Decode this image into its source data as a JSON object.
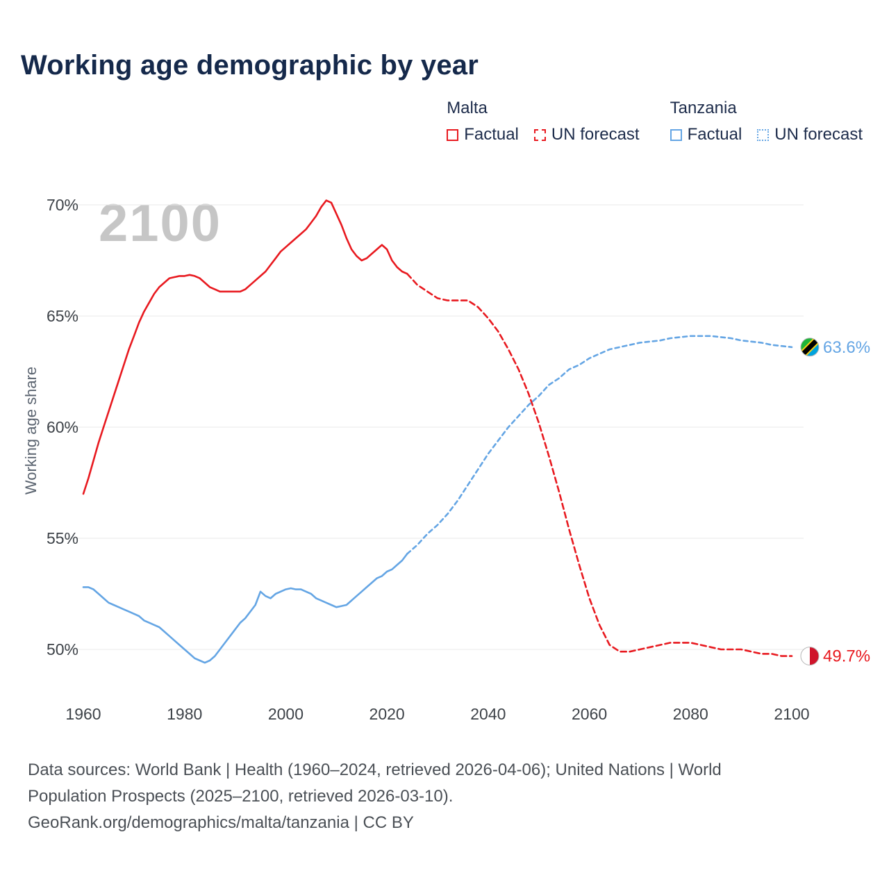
{
  "title": "Working age demographic by year",
  "watermark": "2100",
  "legend": {
    "malta_label": "Malta",
    "tanzania_label": "Tanzania",
    "factual_label": "Factual",
    "forecast_label": "UN forecast"
  },
  "colors": {
    "malta": "#e8191f",
    "tanzania": "#64a5e4",
    "grid": "#e8e8e8",
    "title_text": "#15294b",
    "tick_text": "#3d4248",
    "axis_title_text": "#5b6470",
    "watermark_text": "#c6c6c6",
    "footer_text": "#4a4f55",
    "flag_tz_green": "#1eb53a",
    "flag_tz_blue": "#00a3dd",
    "flag_tz_yellow": "#fcd116",
    "flag_tz_black": "#000000",
    "flag_mt_white": "#ffffff",
    "flag_mt_red": "#cf142b"
  },
  "end_labels": {
    "malta": "49.7%",
    "tanzania": "63.6%"
  },
  "footer": {
    "line1": "Data sources: World Bank | Health (1960–2024, retrieved 2026-04-06); United Nations | World",
    "line2": "Population Prospects (2025–2100, retrieved 2026-03-10).",
    "line3": "GeoRank.org/demographics/malta/tanzania | CC BY"
  },
  "chart_data": {
    "type": "line",
    "title": "Working age demographic by year",
    "xlabel": "",
    "ylabel": "Working age share",
    "ylim": [
      48.5,
      71
    ],
    "xlim": [
      1960,
      2100
    ],
    "yticks": [
      50,
      55,
      60,
      65,
      70
    ],
    "xticks": [
      1960,
      1980,
      2000,
      2020,
      2040,
      2060,
      2080,
      2100
    ],
    "grid": "horizontal",
    "legend_position": "top-right",
    "series": [
      {
        "name": "Malta Factual",
        "color_key": "malta",
        "style": "solid",
        "points": [
          [
            1960,
            57.0
          ],
          [
            1961,
            57.7
          ],
          [
            1962,
            58.5
          ],
          [
            1963,
            59.3
          ],
          [
            1964,
            60.0
          ],
          [
            1965,
            60.7
          ],
          [
            1966,
            61.4
          ],
          [
            1967,
            62.1
          ],
          [
            1968,
            62.8
          ],
          [
            1969,
            63.5
          ],
          [
            1970,
            64.1
          ],
          [
            1971,
            64.7
          ],
          [
            1972,
            65.2
          ],
          [
            1973,
            65.6
          ],
          [
            1974,
            66.0
          ],
          [
            1975,
            66.3
          ],
          [
            1976,
            66.5
          ],
          [
            1977,
            66.7
          ],
          [
            1978,
            66.75
          ],
          [
            1979,
            66.8
          ],
          [
            1980,
            66.8
          ],
          [
            1981,
            66.85
          ],
          [
            1982,
            66.8
          ],
          [
            1983,
            66.7
          ],
          [
            1984,
            66.5
          ],
          [
            1985,
            66.3
          ],
          [
            1986,
            66.2
          ],
          [
            1987,
            66.1
          ],
          [
            1988,
            66.1
          ],
          [
            1989,
            66.1
          ],
          [
            1990,
            66.1
          ],
          [
            1991,
            66.1
          ],
          [
            1992,
            66.2
          ],
          [
            1993,
            66.4
          ],
          [
            1994,
            66.6
          ],
          [
            1995,
            66.8
          ],
          [
            1996,
            67.0
          ],
          [
            1997,
            67.3
          ],
          [
            1998,
            67.6
          ],
          [
            1999,
            67.9
          ],
          [
            2000,
            68.1
          ],
          [
            2001,
            68.3
          ],
          [
            2002,
            68.5
          ],
          [
            2003,
            68.7
          ],
          [
            2004,
            68.9
          ],
          [
            2005,
            69.2
          ],
          [
            2006,
            69.5
          ],
          [
            2007,
            69.9
          ],
          [
            2008,
            70.2
          ],
          [
            2009,
            70.1
          ],
          [
            2010,
            69.6
          ],
          [
            2011,
            69.1
          ],
          [
            2012,
            68.5
          ],
          [
            2013,
            68.0
          ],
          [
            2014,
            67.7
          ],
          [
            2015,
            67.5
          ],
          [
            2016,
            67.6
          ],
          [
            2017,
            67.8
          ],
          [
            2018,
            68.0
          ],
          [
            2019,
            68.2
          ],
          [
            2020,
            68.0
          ],
          [
            2021,
            67.5
          ],
          [
            2022,
            67.2
          ],
          [
            2023,
            67.0
          ],
          [
            2024,
            66.9
          ]
        ]
      },
      {
        "name": "Malta UN forecast",
        "color_key": "malta",
        "style": "dashed",
        "points": [
          [
            2024,
            66.9
          ],
          [
            2026,
            66.4
          ],
          [
            2028,
            66.1
          ],
          [
            2030,
            65.8
          ],
          [
            2032,
            65.7
          ],
          [
            2034,
            65.7
          ],
          [
            2036,
            65.7
          ],
          [
            2038,
            65.4
          ],
          [
            2040,
            64.9
          ],
          [
            2042,
            64.3
          ],
          [
            2044,
            63.5
          ],
          [
            2046,
            62.6
          ],
          [
            2048,
            61.5
          ],
          [
            2050,
            60.2
          ],
          [
            2052,
            58.7
          ],
          [
            2054,
            57.1
          ],
          [
            2056,
            55.4
          ],
          [
            2058,
            53.8
          ],
          [
            2060,
            52.3
          ],
          [
            2062,
            51.1
          ],
          [
            2064,
            50.2
          ],
          [
            2066,
            49.9
          ],
          [
            2068,
            49.9
          ],
          [
            2070,
            50.0
          ],
          [
            2072,
            50.1
          ],
          [
            2074,
            50.2
          ],
          [
            2076,
            50.3
          ],
          [
            2078,
            50.3
          ],
          [
            2080,
            50.3
          ],
          [
            2082,
            50.2
          ],
          [
            2084,
            50.1
          ],
          [
            2086,
            50.0
          ],
          [
            2088,
            50.0
          ],
          [
            2090,
            50.0
          ],
          [
            2092,
            49.9
          ],
          [
            2094,
            49.8
          ],
          [
            2096,
            49.8
          ],
          [
            2098,
            49.7
          ],
          [
            2100,
            49.7
          ]
        ]
      },
      {
        "name": "Tanzania Factual",
        "color_key": "tanzania",
        "style": "solid",
        "points": [
          [
            1960,
            52.8
          ],
          [
            1961,
            52.8
          ],
          [
            1962,
            52.7
          ],
          [
            1963,
            52.5
          ],
          [
            1964,
            52.3
          ],
          [
            1965,
            52.1
          ],
          [
            1966,
            52.0
          ],
          [
            1967,
            51.9
          ],
          [
            1968,
            51.8
          ],
          [
            1969,
            51.7
          ],
          [
            1970,
            51.6
          ],
          [
            1971,
            51.5
          ],
          [
            1972,
            51.3
          ],
          [
            1973,
            51.2
          ],
          [
            1974,
            51.1
          ],
          [
            1975,
            51.0
          ],
          [
            1976,
            50.8
          ],
          [
            1977,
            50.6
          ],
          [
            1978,
            50.4
          ],
          [
            1979,
            50.2
          ],
          [
            1980,
            50.0
          ],
          [
            1981,
            49.8
          ],
          [
            1982,
            49.6
          ],
          [
            1983,
            49.5
          ],
          [
            1984,
            49.4
          ],
          [
            1985,
            49.5
          ],
          [
            1986,
            49.7
          ],
          [
            1987,
            50.0
          ],
          [
            1988,
            50.3
          ],
          [
            1989,
            50.6
          ],
          [
            1990,
            50.9
          ],
          [
            1991,
            51.2
          ],
          [
            1992,
            51.4
          ],
          [
            1993,
            51.7
          ],
          [
            1994,
            52.0
          ],
          [
            1995,
            52.6
          ],
          [
            1996,
            52.4
          ],
          [
            1997,
            52.3
          ],
          [
            1998,
            52.5
          ],
          [
            1999,
            52.6
          ],
          [
            2000,
            52.7
          ],
          [
            2001,
            52.75
          ],
          [
            2002,
            52.7
          ],
          [
            2003,
            52.7
          ],
          [
            2004,
            52.6
          ],
          [
            2005,
            52.5
          ],
          [
            2006,
            52.3
          ],
          [
            2007,
            52.2
          ],
          [
            2008,
            52.1
          ],
          [
            2009,
            52.0
          ],
          [
            2010,
            51.9
          ],
          [
            2011,
            51.95
          ],
          [
            2012,
            52.0
          ],
          [
            2013,
            52.2
          ],
          [
            2014,
            52.4
          ],
          [
            2015,
            52.6
          ],
          [
            2016,
            52.8
          ],
          [
            2017,
            53.0
          ],
          [
            2018,
            53.2
          ],
          [
            2019,
            53.3
          ],
          [
            2020,
            53.5
          ],
          [
            2021,
            53.6
          ],
          [
            2022,
            53.8
          ],
          [
            2023,
            54.0
          ],
          [
            2024,
            54.3
          ]
        ]
      },
      {
        "name": "Tanzania UN forecast",
        "color_key": "tanzania",
        "style": "dashed",
        "points": [
          [
            2024,
            54.3
          ],
          [
            2026,
            54.7
          ],
          [
            2028,
            55.2
          ],
          [
            2030,
            55.6
          ],
          [
            2032,
            56.1
          ],
          [
            2034,
            56.7
          ],
          [
            2036,
            57.4
          ],
          [
            2038,
            58.1
          ],
          [
            2040,
            58.8
          ],
          [
            2042,
            59.4
          ],
          [
            2044,
            60.0
          ],
          [
            2046,
            60.5
          ],
          [
            2048,
            61.0
          ],
          [
            2050,
            61.4
          ],
          [
            2052,
            61.9
          ],
          [
            2054,
            62.2
          ],
          [
            2056,
            62.6
          ],
          [
            2058,
            62.8
          ],
          [
            2060,
            63.1
          ],
          [
            2062,
            63.3
          ],
          [
            2064,
            63.5
          ],
          [
            2066,
            63.6
          ],
          [
            2068,
            63.7
          ],
          [
            2070,
            63.8
          ],
          [
            2072,
            63.85
          ],
          [
            2074,
            63.9
          ],
          [
            2076,
            64.0
          ],
          [
            2078,
            64.05
          ],
          [
            2080,
            64.1
          ],
          [
            2082,
            64.1
          ],
          [
            2084,
            64.1
          ],
          [
            2086,
            64.05
          ],
          [
            2088,
            64.0
          ],
          [
            2090,
            63.9
          ],
          [
            2092,
            63.85
          ],
          [
            2094,
            63.8
          ],
          [
            2096,
            63.7
          ],
          [
            2098,
            63.65
          ],
          [
            2100,
            63.6
          ]
        ]
      }
    ]
  }
}
